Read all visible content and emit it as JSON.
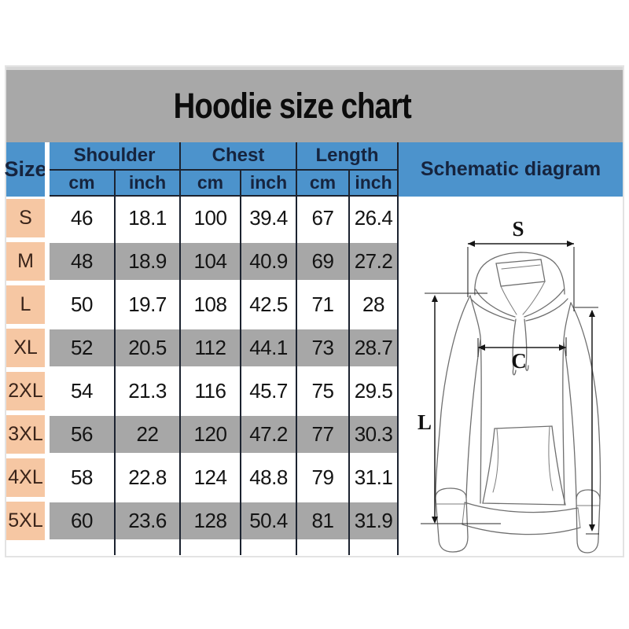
{
  "title": "Hoodie size chart",
  "table": {
    "size_header": "Size",
    "col_groups": [
      "Shoulder",
      "Chest",
      "Length"
    ],
    "unit_labels": [
      "cm",
      "inch",
      "cm",
      "inch",
      "cm",
      "inch"
    ],
    "rows": [
      {
        "size": "S",
        "values": [
          "46",
          "18.1",
          "100",
          "39.4",
          "67",
          "26.4"
        ]
      },
      {
        "size": "M",
        "values": [
          "48",
          "18.9",
          "104",
          "40.9",
          "69",
          "27.2"
        ]
      },
      {
        "size": "L",
        "values": [
          "50",
          "19.7",
          "108",
          "42.5",
          "71",
          "28"
        ]
      },
      {
        "size": "XL",
        "values": [
          "52",
          "20.5",
          "112",
          "44.1",
          "73",
          "28.7"
        ]
      },
      {
        "size": "2XL",
        "values": [
          "54",
          "21.3",
          "116",
          "45.7",
          "75",
          "29.5"
        ]
      },
      {
        "size": "3XL",
        "values": [
          "56",
          "22",
          "120",
          "47.2",
          "77",
          "30.3"
        ]
      },
      {
        "size": "4XL",
        "values": [
          "58",
          "22.8",
          "124",
          "48.8",
          "79",
          "31.1"
        ]
      },
      {
        "size": "5XL",
        "values": [
          "60",
          "23.6",
          "128",
          "50.4",
          "81",
          "31.9"
        ]
      }
    ]
  },
  "schematic": {
    "header": "Schematic diagram",
    "dimension_labels": {
      "shoulder": "S",
      "chest": "C",
      "length": "L"
    }
  },
  "chart_data": {
    "type": "table",
    "title": "Hoodie size chart",
    "columns": [
      "Size",
      "Shoulder cm",
      "Shoulder inch",
      "Chest cm",
      "Chest inch",
      "Length cm",
      "Length inch"
    ],
    "rows": [
      [
        "S",
        46,
        18.1,
        100,
        39.4,
        67,
        26.4
      ],
      [
        "M",
        48,
        18.9,
        104,
        40.9,
        69,
        27.2
      ],
      [
        "L",
        50,
        19.7,
        108,
        42.5,
        71,
        28
      ],
      [
        "XL",
        52,
        20.5,
        112,
        44.1,
        73,
        28.7
      ],
      [
        "2XL",
        54,
        21.3,
        116,
        45.7,
        75,
        29.5
      ],
      [
        "3XL",
        56,
        22,
        120,
        47.2,
        77,
        30.3
      ],
      [
        "4XL",
        58,
        22.8,
        124,
        48.8,
        79,
        31.1
      ],
      [
        "5XL",
        60,
        23.6,
        128,
        50.4,
        81,
        31.9
      ]
    ]
  },
  "colors": {
    "header_blue": "#4c93cc",
    "row_gray": "#a7a7a7",
    "title_bar_gray": "#a8a8a8",
    "size_cell_peach": "#f6c7a3",
    "header_text_navy": "#16243e",
    "grid_line_dark": "#1c2330"
  }
}
